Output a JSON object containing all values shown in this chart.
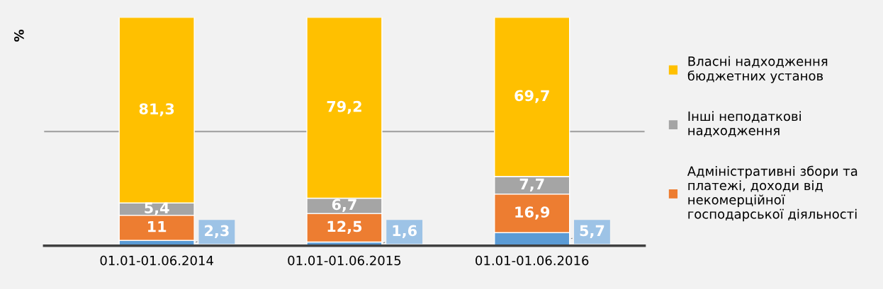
{
  "chart_data": {
    "type": "bar",
    "stacked": true,
    "ylabel": "%",
    "categories": [
      "01.01-01.06.2014",
      "01.01-01.06.2015",
      "01.01-01.06.2016"
    ],
    "ylim": [
      0,
      100
    ],
    "tick_labels": "x",
    "grid": false,
    "legend": "right",
    "ref_lines": [
      {
        "axis": "y",
        "value": 50,
        "color": "#a6a6a6"
      }
    ],
    "series": [
      {
        "color": "#5b9bd5",
        "values": [
          2.3,
          1.6,
          5.7
        ],
        "value_labels": [
          "2,3",
          "1,6",
          "5,7"
        ]
      },
      {
        "name": "Адміністративні збори та платежі, доходи від некомерційної господарської діяльності",
        "color": "#ed7d31",
        "values": [
          11,
          12.5,
          16.9
        ],
        "value_labels": [
          "11",
          "12,5",
          "16,9"
        ]
      },
      {
        "name": "Інші неподаткові надходження",
        "color": "#a5a5a5",
        "values": [
          5.4,
          6.7,
          7.7
        ],
        "value_labels": [
          "5,4",
          "6,7",
          "7,7"
        ]
      },
      {
        "name": "Власні надходження бюджетних установ",
        "color": "#ffc000",
        "values": [
          81.3,
          79.2,
          69.7
        ],
        "value_labels": [
          "81,3",
          "79,2",
          "69,7"
        ]
      }
    ]
  }
}
